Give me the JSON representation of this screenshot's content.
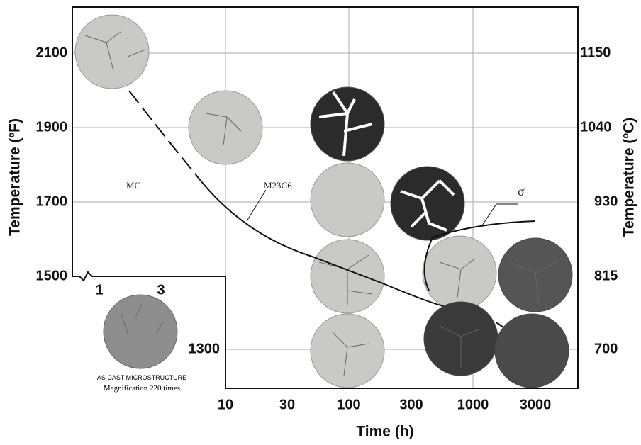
{
  "axes": {
    "y_left_label": "Temperature (ºF)",
    "y_right_label": "Temperature (ºC)",
    "x_label": "Time (h)",
    "left_ticks": [
      "2100",
      "1900",
      "1700",
      "1500"
    ],
    "inner_tick": "1300",
    "right_ticks": [
      "1150",
      "1040",
      "930",
      "815",
      "700"
    ],
    "x_ticks": [
      "10",
      "30",
      "100",
      "300",
      "1000",
      "3000"
    ],
    "inset_ticks": [
      "1",
      "3"
    ]
  },
  "regions": {
    "mc": "MC",
    "m23c6": "M23C6",
    "sigma": "σ"
  },
  "caption": {
    "line1": "AS CAST MICROSTRUCTURE",
    "line2": "Magnification 220 times"
  }
}
